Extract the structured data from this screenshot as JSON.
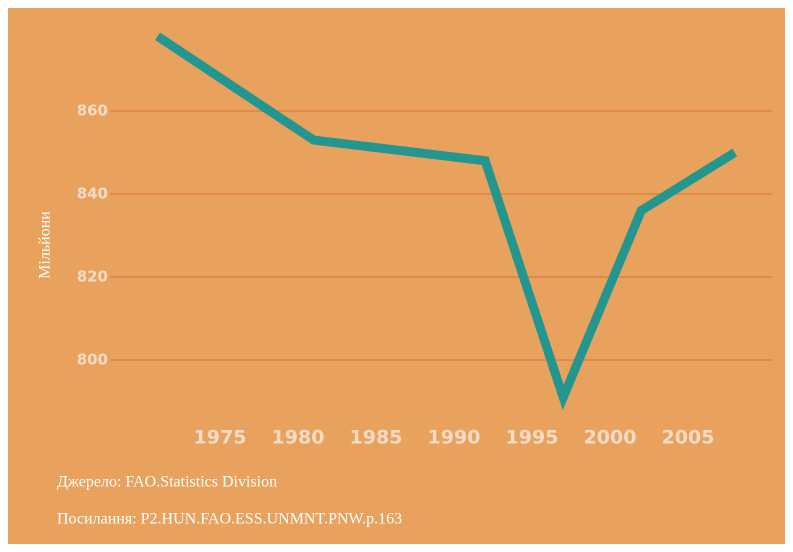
{
  "chart_data": {
    "type": "line",
    "y_label": "Мільйони",
    "x": [
      1971,
      1981,
      1992,
      1997,
      2002,
      2008
    ],
    "series": [
      {
        "name": null,
        "color": "#23978f",
        "values": [
          878,
          853,
          848,
          791,
          836,
          850
        ]
      }
    ],
    "xlim": [
      1970,
      2010
    ],
    "xticks": [
      1975,
      1980,
      1985,
      1990,
      1995,
      2000,
      2005
    ],
    "ylim": [
      790,
      880
    ],
    "yticks": [
      800,
      820,
      840,
      860
    ],
    "grid": true,
    "source": "Джерело: FAO.Statistics Division",
    "reference": "Посилання: P2.HUN.FAO.ESS.UNMNT.PNW.p.163"
  }
}
